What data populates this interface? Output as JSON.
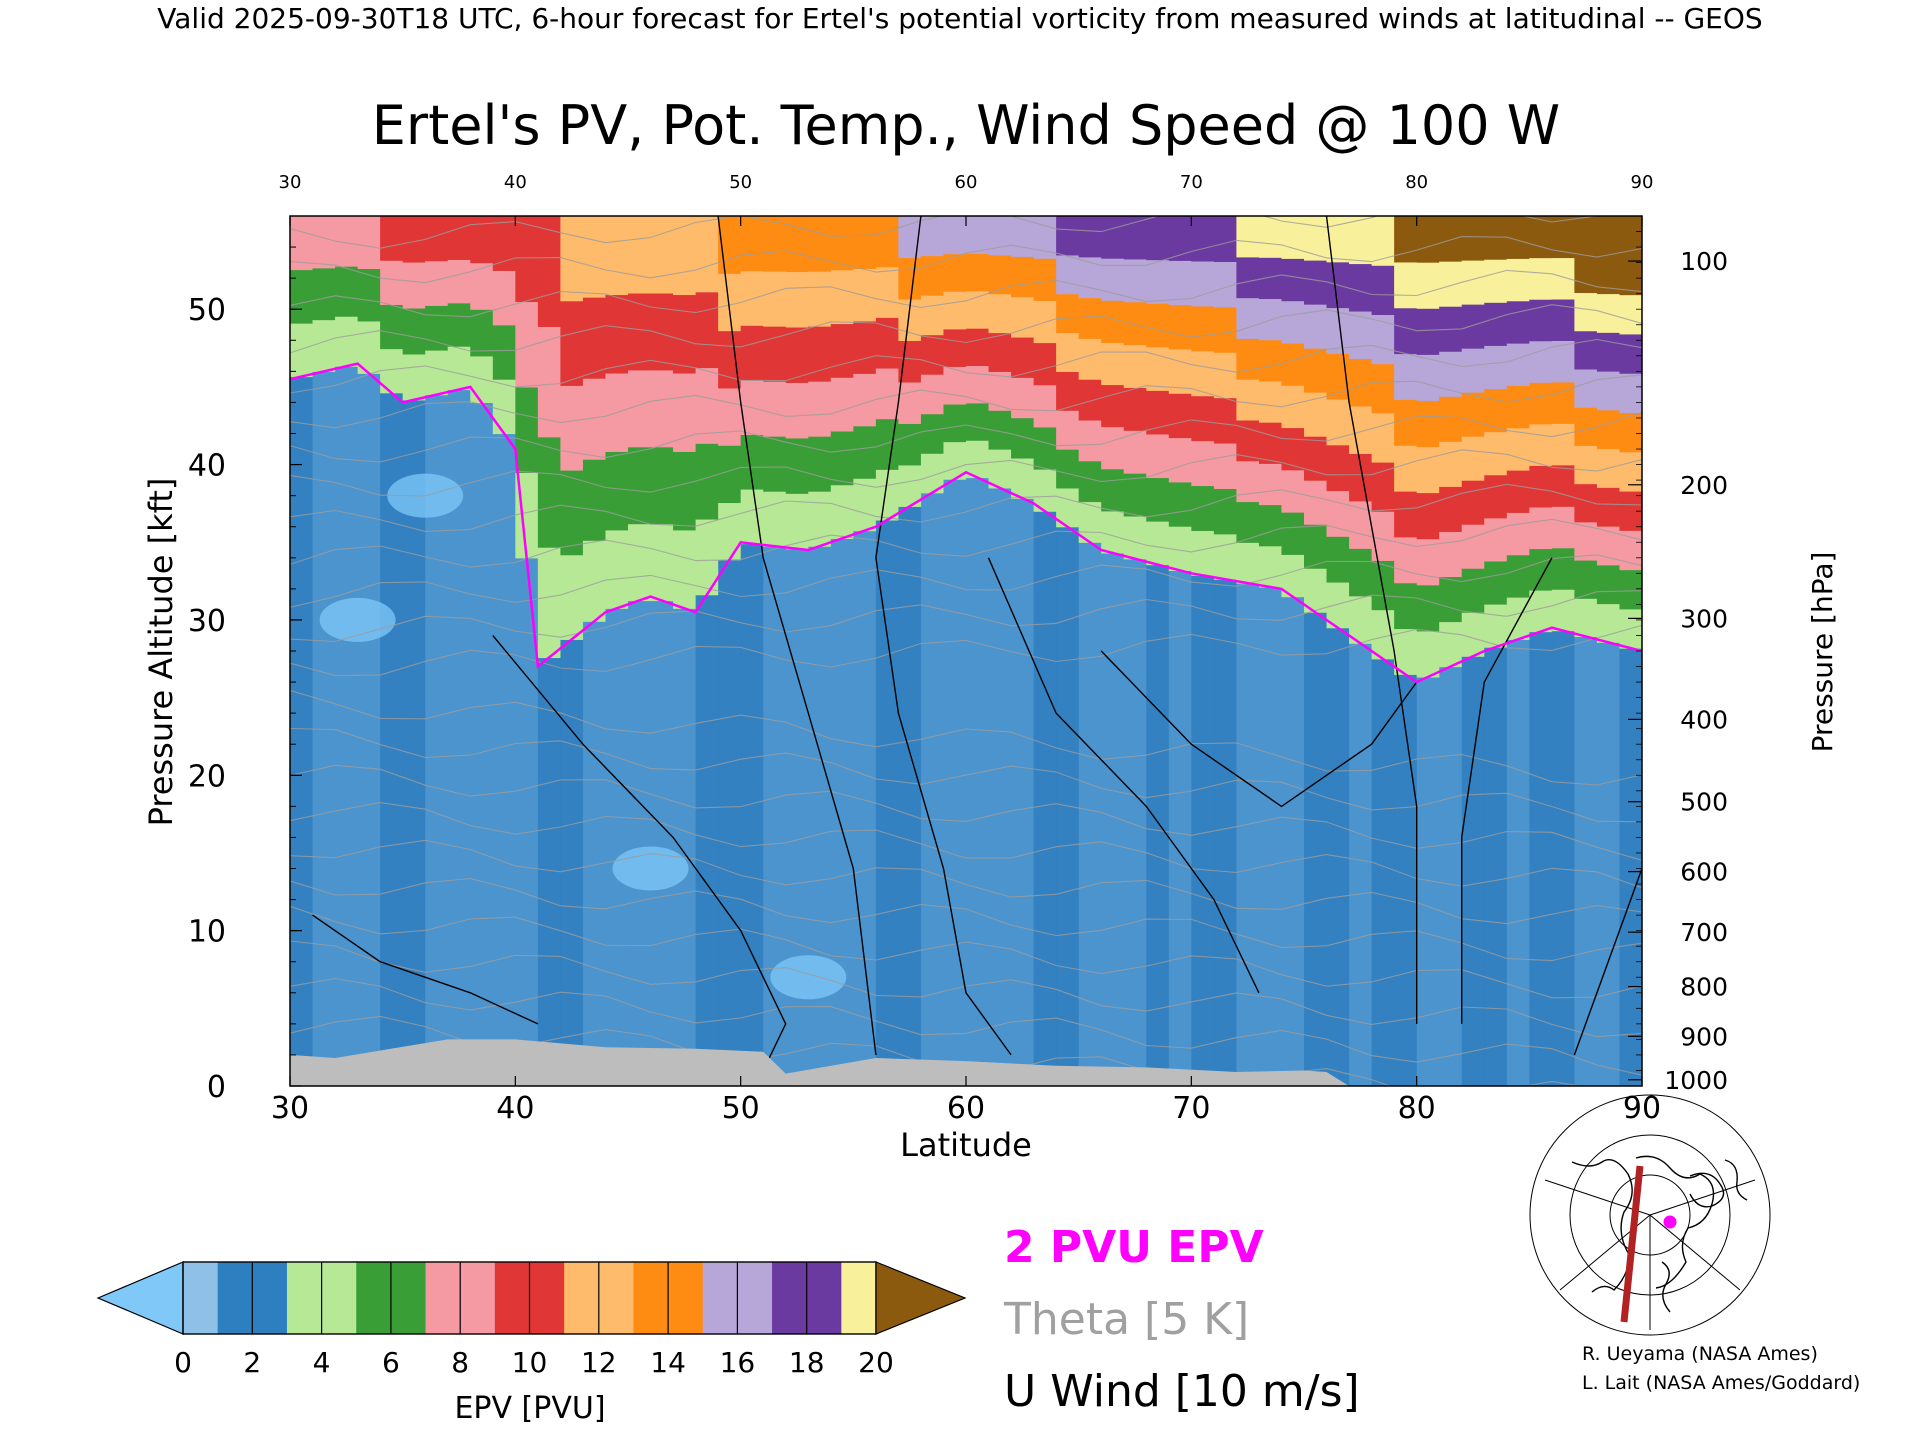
{
  "header": {
    "valid_line": "Valid 2025-09-30T18 UTC, 6-hour forecast for Ertel's potential vorticity from measured winds at latitudinal -- GEOS"
  },
  "chart_data": {
    "type": "heatmap",
    "title": "Ertel's PV, Pot. Temp., Wind Speed @ 100 W",
    "xlabel": "Latitude",
    "ylabel": "Pressure Altitude [kft]",
    "y2label": "Pressure [hPa]",
    "xlim": [
      30,
      90
    ],
    "ylim": [
      0,
      56
    ],
    "x_ticks": [
      30,
      40,
      50,
      60,
      70,
      80,
      90
    ],
    "x_tick_labels": [
      "30",
      "40",
      "50",
      "60",
      "70",
      "80",
      "90"
    ],
    "top_tick_labels": [
      "30",
      "40",
      "50",
      "60",
      "70",
      "80",
      "90"
    ],
    "y_ticks": [
      0,
      10,
      20,
      30,
      40,
      50
    ],
    "y_tick_labels": [
      "0",
      "10",
      "20",
      "30",
      "40",
      "50"
    ],
    "pressure_ticks": [
      {
        "label": "100",
        "kft": 53.1
      },
      {
        "label": "200",
        "kft": 38.7
      },
      {
        "label": "300",
        "kft": 30.1
      },
      {
        "label": "400",
        "kft": 23.6
      },
      {
        "label": "500",
        "kft": 18.3
      },
      {
        "label": "600",
        "kft": 13.8
      },
      {
        "label": "700",
        "kft": 9.9
      },
      {
        "label": "800",
        "kft": 6.4
      },
      {
        "label": "900",
        "kft": 3.2
      },
      {
        "label": "1000",
        "kft": 0.4
      }
    ],
    "tropopause_2pvu_kft": [
      {
        "lat": 30,
        "kft": 45.5
      },
      {
        "lat": 33,
        "kft": 46.5
      },
      {
        "lat": 35,
        "kft": 44
      },
      {
        "lat": 38,
        "kft": 45
      },
      {
        "lat": 40,
        "kft": 41
      },
      {
        "lat": 41,
        "kft": 27
      },
      {
        "lat": 44,
        "kft": 30.5
      },
      {
        "lat": 46,
        "kft": 31.5
      },
      {
        "lat": 48,
        "kft": 30.5
      },
      {
        "lat": 50,
        "kft": 35
      },
      {
        "lat": 53,
        "kft": 34.5
      },
      {
        "lat": 56,
        "kft": 36
      },
      {
        "lat": 60,
        "kft": 39.5
      },
      {
        "lat": 63,
        "kft": 37.5
      },
      {
        "lat": 66,
        "kft": 34.5
      },
      {
        "lat": 70,
        "kft": 33
      },
      {
        "lat": 74,
        "kft": 32
      },
      {
        "lat": 77,
        "kft": 29
      },
      {
        "lat": 80,
        "kft": 26
      },
      {
        "lat": 83,
        "kft": 28
      },
      {
        "lat": 86,
        "kft": 29.5
      },
      {
        "lat": 90,
        "kft": 28
      }
    ],
    "colorbar": {
      "label": "EPV [PVU]",
      "ticks": [
        "0",
        "2",
        "4",
        "6",
        "8",
        "10",
        "12",
        "14",
        "16",
        "18",
        "20"
      ],
      "range": [
        0,
        20
      ],
      "colors": [
        "#7fc8f8",
        "#2e7fc0",
        "#b7e895",
        "#3a9e36",
        "#f59aa2",
        "#e03636",
        "#ffbb6c",
        "#ff8c12",
        "#b7a6d8",
        "#6b3aa0",
        "#f8f09a",
        "#8b5a0e"
      ]
    }
  },
  "legend": {
    "epv_label": "2 PVU EPV",
    "theta_label": "Theta [5 K]",
    "wind_label": "U Wind [10 m/s]",
    "epv_color": "#ff00ff",
    "theta_color": "#a0a0a0",
    "wind_color": "#000000"
  },
  "credits": {
    "line1": "R. Ueyama (NASA Ames)",
    "line2": "L. Lait (NASA Ames/Goddard)"
  },
  "inset_map": {
    "section_color": "#b22222",
    "marker_color": "#ff00ff"
  }
}
